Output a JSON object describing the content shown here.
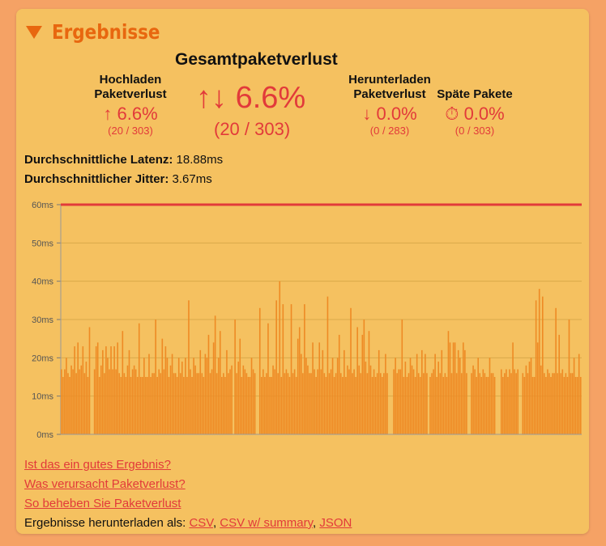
{
  "section": {
    "title": "Ergebnisse"
  },
  "summary": {
    "total_title": "Gesamtpaketverlust",
    "total_icon": "↑↓",
    "total_value": "6.6%",
    "total_counts": "(20 / 303)",
    "upload": {
      "label1": "Hochladen",
      "label2": "Paketverlust",
      "icon": "↑",
      "value": "6.6%",
      "counts": "(20 / 303)"
    },
    "download": {
      "label1": "Herunterladen",
      "label2": "Paketverlust",
      "icon": "↓",
      "value": "0.0%",
      "counts": "(0 / 283)"
    },
    "late": {
      "label": "Späte Pakete",
      "icon": "⏱",
      "value": "0.0%",
      "counts": "(0 / 303)"
    }
  },
  "metrics": {
    "latency_label": "Durchschnittliche Latenz:",
    "latency_value": "18.88ms",
    "jitter_label": "Durchschnittlicher Jitter:",
    "jitter_value": "3.67ms"
  },
  "links": {
    "good_result": "Ist das ein gutes Ergebnis?",
    "cause": "Was verursacht Paketverlust?",
    "fix": "So beheben Sie Paketverlust",
    "download_prefix": "Ergebnisse herunterladen als:",
    "csv": "CSV",
    "csv_summary": "CSV w/ summary",
    "json": "JSON"
  },
  "colors": {
    "accent": "#e8670f",
    "bar": "#ee8a24",
    "loss": "#e23a3a",
    "card": "#f5c160",
    "background": "#f5a265"
  },
  "chart_data": {
    "type": "bar",
    "ylim": [
      0,
      60
    ],
    "yticks": [
      "0ms",
      "10ms",
      "20ms",
      "30ms",
      "40ms",
      "50ms",
      "60ms"
    ],
    "grid": true,
    "series": [
      {
        "values": [
          17,
          15,
          17,
          20,
          16,
          15,
          18,
          17,
          23,
          16,
          24,
          17,
          18,
          23,
          16,
          19,
          15,
          28,
          null,
          null,
          17,
          23,
          24,
          15,
          18,
          22,
          16,
          23,
          20,
          17,
          23,
          17,
          23,
          17,
          24,
          16,
          15,
          27,
          16,
          15,
          18,
          22,
          15,
          17,
          18,
          17,
          15,
          29,
          15,
          15,
          20,
          15,
          15,
          21,
          15,
          16,
          16,
          30,
          15,
          17,
          16,
          25,
          17,
          23,
          20,
          15,
          18,
          21,
          16,
          16,
          15,
          20,
          16,
          19,
          15,
          20,
          15,
          35,
          17,
          15,
          20,
          18,
          16,
          16,
          22,
          16,
          15,
          21,
          20,
          26,
          16,
          17,
          24,
          31,
          16,
          20,
          27,
          15,
          16,
          15,
          22,
          16,
          17,
          18,
          null,
          30,
          16,
          19,
          25,
          15,
          18,
          17,
          16,
          15,
          15,
          20,
          17,
          16,
          null,
          null,
          33,
          15,
          17,
          15,
          16,
          29,
          15,
          15,
          18,
          17,
          35,
          16,
          40,
          15,
          34,
          16,
          17,
          16,
          15,
          34,
          16,
          17,
          15,
          25,
          28,
          21,
          16,
          34,
          20,
          18,
          16,
          16,
          24,
          17,
          15,
          17,
          24,
          17,
          22,
          16,
          15,
          36,
          16,
          17,
          20,
          15,
          16,
          20,
          26,
          16,
          15,
          22,
          15,
          18,
          17,
          33,
          16,
          17,
          15,
          28,
          18,
          16,
          26,
          30,
          19,
          16,
          27,
          18,
          15,
          17,
          15,
          16,
          22,
          16,
          15,
          16,
          21,
          16,
          null,
          null,
          null,
          17,
          20,
          16,
          17,
          17,
          30,
          15,
          19,
          15,
          16,
          20,
          18,
          17,
          15,
          21,
          16,
          15,
          22,
          16,
          21,
          16,
          null,
          15,
          16,
          17,
          21,
          15,
          19,
          16,
          22,
          15,
          16,
          15,
          27,
          24,
          16,
          24,
          24,
          16,
          22,
          20,
          16,
          24,
          22,
          16,
          null,
          null,
          16,
          18,
          17,
          15,
          20,
          16,
          15,
          17,
          16,
          15,
          15,
          20,
          16,
          16,
          15,
          null,
          null,
          null,
          17,
          15,
          16,
          17,
          15,
          17,
          16,
          24,
          17,
          16,
          17,
          null,
          null,
          16,
          15,
          18,
          16,
          19,
          20,
          15,
          15,
          35,
          24,
          38,
          18,
          36,
          16,
          15,
          17,
          16,
          15,
          16,
          16,
          33,
          16,
          26,
          16,
          17,
          15,
          16,
          15,
          30,
          16,
          16,
          20,
          15,
          15,
          21,
          15
        ]
      }
    ],
    "loss_threshold": 60
  }
}
